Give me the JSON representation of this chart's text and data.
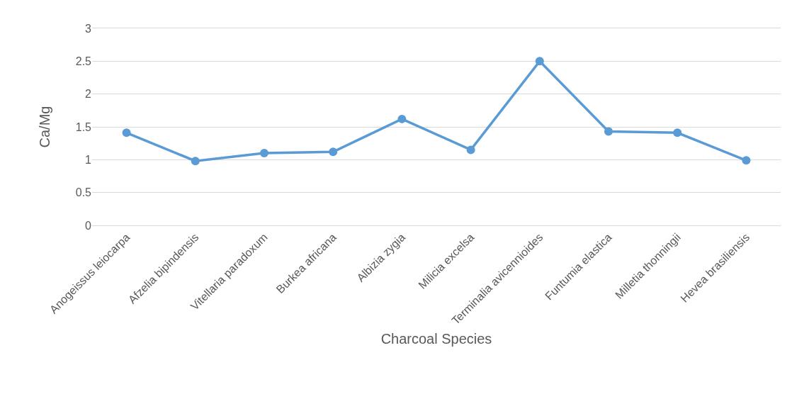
{
  "chart_data": {
    "type": "line",
    "xlabel": "Charcoal Species",
    "ylabel": "Ca/Mg",
    "categories": [
      "Anogeissus leiocarpa",
      "Afzelia bipindensis",
      "Vitellaria paradoxum",
      "Burkea africana",
      "Albizia zygia",
      "Milicia excelsa",
      "Terminalia avicennioides",
      "Funtumia elastica",
      "Milletia thonningii",
      "Hevea brasiliensis"
    ],
    "series": [
      {
        "color": "#5b9bd5",
        "values": [
          1.41,
          0.98,
          1.1,
          1.12,
          1.62,
          1.15,
          2.5,
          1.43,
          1.41,
          0.99
        ]
      }
    ],
    "ylim": [
      0,
      3
    ],
    "yticks": [
      0,
      0.5,
      1,
      1.5,
      2,
      2.5,
      3
    ],
    "grid": "y",
    "marker": "circle",
    "line_style": "solid"
  }
}
